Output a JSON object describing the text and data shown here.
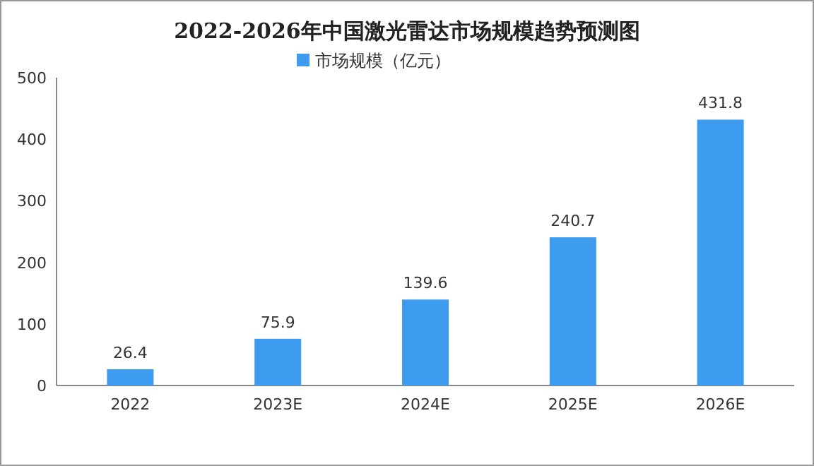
{
  "chart_data": {
    "type": "bar",
    "title": "2022-2026年中国激光雷达市场规模趋势预测图",
    "categories": [
      "2022",
      "2023E",
      "2024E",
      "2025E",
      "2026E"
    ],
    "series": [
      {
        "name": "市场规模（亿元）",
        "color": "#3d9cf0",
        "values": [
          26.4,
          75.9,
          139.6,
          240.7,
          431.8
        ]
      }
    ],
    "ylim": [
      0,
      500
    ],
    "yticks": [
      0,
      100,
      200,
      300,
      400,
      500
    ],
    "data_labels": true,
    "legend": "top"
  }
}
